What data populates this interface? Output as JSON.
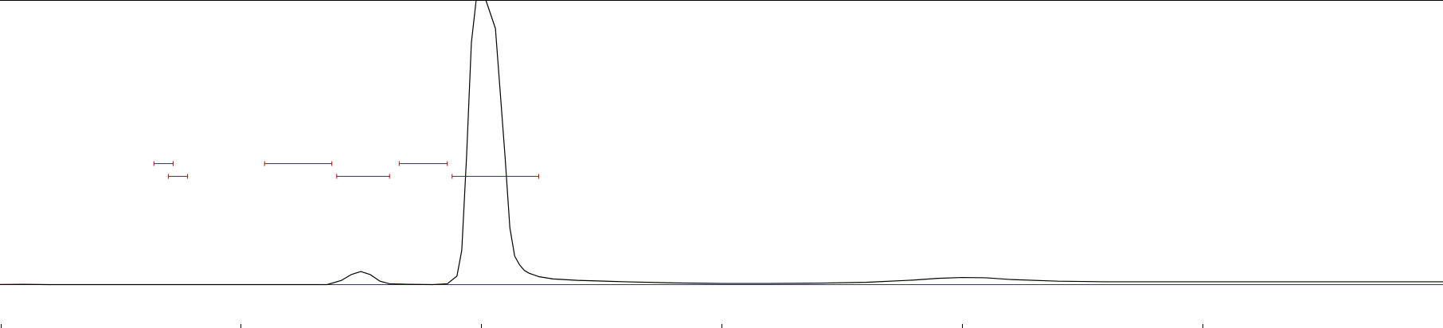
{
  "chart_data": {
    "type": "line",
    "title": "",
    "xlabel": "",
    "ylabel": "",
    "xlim": [
      0,
      30
    ],
    "ylim": [
      0,
      1
    ],
    "xticks": [
      0,
      5,
      10,
      15,
      20,
      25
    ],
    "grid": false,
    "legend": "none",
    "colors": {
      "trace": "#000000",
      "baseline": "#cc0000",
      "integration_bars": "#cc0000",
      "frame": "#000000"
    },
    "series": [
      {
        "values_x": [
          0.0,
          0.5,
          1.0,
          2.0,
          3.0,
          4.0,
          5.0,
          6.0,
          6.8,
          7.1,
          7.3,
          7.5,
          7.7,
          7.9,
          8.1,
          8.5,
          9.0,
          9.3,
          9.5,
          9.6,
          9.7,
          9.8,
          9.9,
          10.0,
          10.1,
          10.3,
          10.5,
          10.6,
          10.7,
          10.8,
          10.9,
          11.0,
          11.2,
          11.5,
          12.0,
          13.0,
          14.0,
          15.0,
          16.0,
          17.0,
          18.0,
          19.0,
          19.5,
          20.0,
          20.5,
          21.0,
          22.0,
          23.0,
          24.0,
          25.0,
          26.0,
          27.0,
          28.0,
          29.0,
          30.0
        ],
        "values_y": [
          0.0005,
          0.001,
          0.0,
          0.0,
          0.0,
          0.0,
          0.0,
          0.0,
          0.0,
          0.015,
          0.035,
          0.046,
          0.035,
          0.012,
          0.003,
          0.001,
          0.0,
          0.003,
          0.03,
          0.12,
          0.45,
          0.85,
          1.0,
          1.0,
          1.0,
          0.9,
          0.45,
          0.2,
          0.1,
          0.07,
          0.05,
          0.04,
          0.028,
          0.02,
          0.015,
          0.01,
          0.006,
          0.004,
          0.004,
          0.005,
          0.008,
          0.016,
          0.022,
          0.025,
          0.024,
          0.018,
          0.012,
          0.01,
          0.01,
          0.01,
          0.01,
          0.01,
          0.01,
          0.01,
          0.01
        ]
      }
    ],
    "integration_bars": [
      {
        "row": 1,
        "start": 3.2,
        "end": 3.6
      },
      {
        "row": 2,
        "start": 3.5,
        "end": 3.9
      },
      {
        "row": 1,
        "start": 5.5,
        "end": 6.9
      },
      {
        "row": 2,
        "start": 7.0,
        "end": 8.1
      },
      {
        "row": 1,
        "start": 8.3,
        "end": 9.3
      },
      {
        "row": 2,
        "start": 9.4,
        "end": 11.2
      }
    ]
  }
}
